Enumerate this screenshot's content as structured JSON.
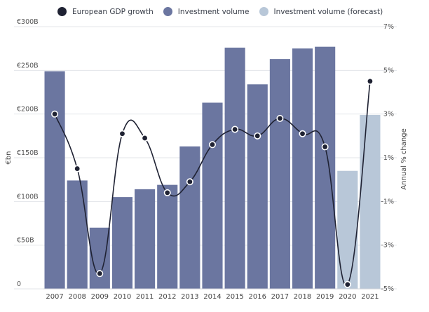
{
  "legend": [
    {
      "label": "European GDP growth",
      "color": "#1f2233"
    },
    {
      "label": "Investment volume",
      "color": "#6b76a0"
    },
    {
      "label": "Investment volume (forecast)",
      "color": "#b8c7d8"
    }
  ],
  "chart_data": {
    "type": "bar",
    "categories": [
      "2007",
      "2008",
      "2009",
      "2010",
      "2011",
      "2012",
      "2013",
      "2014",
      "2015",
      "2016",
      "2017",
      "2018",
      "2019",
      "2020",
      "2021"
    ],
    "series": [
      {
        "name": "Investment volume",
        "axis": "left",
        "color": "#6b76a0",
        "values": [
          249,
          124,
          70,
          105,
          114,
          119,
          163,
          213,
          276,
          234,
          263,
          275,
          277,
          null,
          null
        ]
      },
      {
        "name": "Investment volume (forecast)",
        "axis": "left",
        "color": "#b8c7d8",
        "values": [
          null,
          null,
          null,
          null,
          null,
          null,
          null,
          null,
          null,
          null,
          null,
          null,
          null,
          135,
          199
        ]
      },
      {
        "name": "European GDP growth",
        "axis": "right",
        "type": "line",
        "color": "#1f2233",
        "values": [
          3.0,
          0.5,
          -4.3,
          2.1,
          1.9,
          -0.6,
          -0.1,
          1.6,
          2.3,
          2.0,
          2.8,
          2.1,
          1.5,
          -4.8,
          4.5
        ]
      }
    ],
    "ylabel": "€bn",
    "y2label": "Annual % change",
    "ylim": [
      0,
      300
    ],
    "y2lim": [
      -5,
      7
    ],
    "yticks": [
      {
        "value": 0,
        "label": "0"
      },
      {
        "value": 50,
        "label": "€50B"
      },
      {
        "value": 100,
        "label": "€100B"
      },
      {
        "value": 150,
        "label": "€150B"
      },
      {
        "value": 200,
        "label": "€200B"
      },
      {
        "value": 250,
        "label": "€250B"
      },
      {
        "value": 300,
        "label": "€300B"
      }
    ],
    "y2ticks": [
      {
        "value": -5,
        "label": "-5%"
      },
      {
        "value": -3,
        "label": "-3%"
      },
      {
        "value": -1,
        "label": "-1%"
      },
      {
        "value": 1,
        "label": "1%"
      },
      {
        "value": 3,
        "label": "3%"
      },
      {
        "value": 5,
        "label": "5%"
      },
      {
        "value": 7,
        "label": "7%"
      }
    ],
    "grid": true,
    "legend_position": "top"
  }
}
